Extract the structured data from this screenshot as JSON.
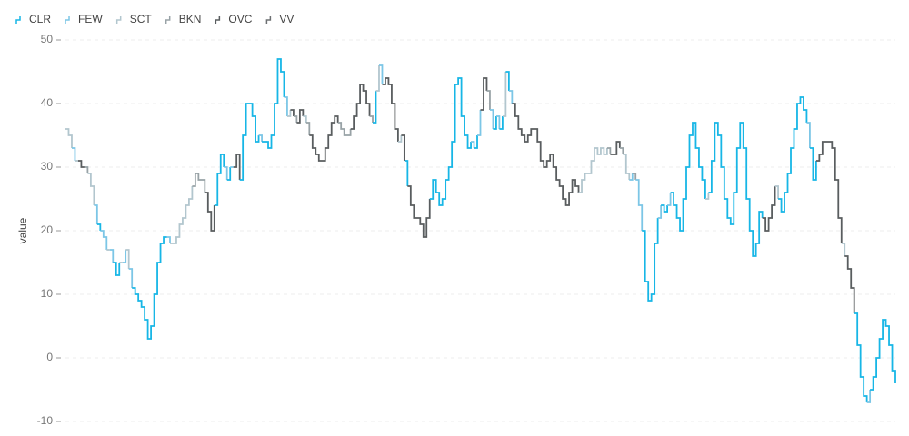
{
  "chart_data": {
    "type": "step",
    "y_label": "value",
    "series": [
      {
        "name": "CLR",
        "color": "#17b6e6"
      },
      {
        "name": "FEW",
        "color": "#7cc6e6"
      },
      {
        "name": "SCT",
        "color": "#b2c6ce"
      },
      {
        "name": "BKN",
        "color": "#98a2a6"
      },
      {
        "name": "OVC",
        "color": "#595d5f"
      },
      {
        "name": "VV",
        "color": "#6d7072"
      }
    ],
    "values": [
      36,
      35,
      33,
      31,
      31,
      30,
      30,
      29,
      27,
      24,
      21,
      20,
      19,
      17,
      17,
      15,
      13,
      15,
      15,
      17,
      14,
      11,
      10,
      9,
      8,
      6,
      3,
      5,
      10,
      15,
      18,
      19,
      19,
      18,
      18,
      19,
      21,
      22,
      24,
      25,
      27,
      29,
      28,
      28,
      26,
      23,
      20,
      24,
      29,
      32,
      30,
      28,
      30,
      30,
      32,
      28,
      35,
      40,
      40,
      38,
      34,
      35,
      34,
      34,
      33,
      35,
      40,
      47,
      45,
      41,
      38,
      39,
      38,
      37,
      39,
      38,
      37,
      35,
      33,
      32,
      31,
      31,
      33,
      35,
      37,
      38,
      37,
      36,
      35,
      35,
      36,
      38,
      40,
      43,
      42,
      40,
      38,
      37,
      42,
      46,
      43,
      44,
      43,
      40,
      36,
      34,
      35,
      31,
      27,
      24,
      22,
      22,
      21,
      19,
      22,
      25,
      28,
      26,
      24,
      25,
      28,
      30,
      34,
      43,
      44,
      38,
      35,
      33,
      34,
      33,
      35,
      39,
      44,
      42,
      39,
      36,
      38,
      36,
      38,
      45,
      42,
      40,
      38,
      36,
      35,
      34,
      35,
      36,
      36,
      34,
      31,
      30,
      31,
      32,
      30,
      28,
      27,
      25,
      24,
      26,
      28,
      27,
      26,
      28,
      29,
      29,
      31,
      33,
      32,
      33,
      32,
      33,
      32,
      32,
      34,
      33,
      32,
      29,
      28,
      29,
      28,
      24,
      20,
      12,
      9,
      10,
      18,
      22,
      24,
      23,
      24,
      26,
      24,
      22,
      20,
      25,
      30,
      35,
      37,
      33,
      30,
      28,
      25,
      26,
      31,
      37,
      35,
      30,
      25,
      22,
      21,
      26,
      33,
      37,
      33,
      25,
      20,
      16,
      18,
      23,
      22,
      20,
      22,
      24,
      27,
      25,
      23,
      26,
      29,
      33,
      36,
      40,
      41,
      39,
      37,
      33,
      28,
      31,
      32,
      34,
      34,
      34,
      33,
      28,
      22,
      18,
      16,
      14,
      11,
      7,
      2,
      -3,
      -6,
      -7,
      -5,
      -3,
      0,
      3,
      6,
      5,
      2,
      -2,
      -4
    ],
    "sky": [
      "SCT",
      "SCT",
      "FEW",
      "SCT",
      "OVC",
      "OVC",
      "BKN",
      "SCT",
      "SCT",
      "FEW",
      "CLR",
      "FEW",
      "FEW",
      "SCT",
      "FEW",
      "CLR",
      "CLR",
      "SCT",
      "FEW",
      "SCT",
      "FEW",
      "CLR",
      "CLR",
      "CLR",
      "CLR",
      "CLR",
      "CLR",
      "CLR",
      "CLR",
      "CLR",
      "CLR",
      "CLR",
      "FEW",
      "SCT",
      "SCT",
      "SCT",
      "SCT",
      "SCT",
      "SCT",
      "SCT",
      "BKN",
      "BKN",
      "BKN",
      "BKN",
      "OVC",
      "OVC",
      "OVC",
      "CLR",
      "CLR",
      "CLR",
      "FEW",
      "CLR",
      "FEW",
      "OVC",
      "OVC",
      "CLR",
      "CLR",
      "CLR",
      "CLR",
      "CLR",
      "CLR",
      "FEW",
      "CLR",
      "CLR",
      "CLR",
      "CLR",
      "CLR",
      "CLR",
      "CLR",
      "FEW",
      "SCT",
      "OVC",
      "BKN",
      "OVC",
      "OVC",
      "SCT",
      "BKN",
      "OVC",
      "OVC",
      "OVC",
      "OVC",
      "OVC",
      "OVC",
      "OVC",
      "OVC",
      "OVC",
      "BKN",
      "BKN",
      "BKN",
      "BKN",
      "OVC",
      "OVC",
      "OVC",
      "OVC",
      "OVC",
      "OVC",
      "BKN",
      "CLR",
      "SCT",
      "FEW",
      "OVC",
      "OVC",
      "OVC",
      "OVC",
      "OVC",
      "SCT",
      "OVC",
      "CLR",
      "OVC",
      "OVC",
      "OVC",
      "OVC",
      "OVC",
      "OVC",
      "OVC",
      "CLR",
      "CLR",
      "CLR",
      "CLR",
      "CLR",
      "CLR",
      "CLR",
      "CLR",
      "CLR",
      "CLR",
      "CLR",
      "CLR",
      "CLR",
      "FEW",
      "CLR",
      "FEW",
      "OVC",
      "OVC",
      "BKN",
      "FEW",
      "CLR",
      "FEW",
      "CLR",
      "SCT",
      "CLR",
      "FEW",
      "OVC",
      "OVC",
      "OVC",
      "OVC",
      "OVC",
      "OVC",
      "OVC",
      "OVC",
      "OVC",
      "OVC",
      "OVC",
      "OVC",
      "OVC",
      "OVC",
      "OVC",
      "OVC",
      "OVC",
      "OVC",
      "OVC",
      "OVC",
      "OVC",
      "SCT",
      "SCT",
      "SCT",
      "SCT",
      "SCT",
      "SCT",
      "SCT",
      "SCT",
      "SCT",
      "BKN",
      "OVC",
      "OVC",
      "OVC",
      "BKN",
      "SCT",
      "SCT",
      "FEW",
      "BKN",
      "FEW",
      "FEW",
      "CLR",
      "CLR",
      "CLR",
      "CLR",
      "CLR",
      "FEW",
      "CLR",
      "CLR",
      "FEW",
      "CLR",
      "CLR",
      "CLR",
      "CLR",
      "CLR",
      "CLR",
      "CLR",
      "CLR",
      "CLR",
      "CLR",
      "CLR",
      "SCT",
      "CLR",
      "CLR",
      "CLR",
      "CLR",
      "CLR",
      "CLR",
      "CLR",
      "CLR",
      "CLR",
      "CLR",
      "CLR",
      "CLR",
      "CLR",
      "CLR",
      "CLR",
      "CLR",
      "CLR",
      "OVC",
      "OVC",
      "OVC",
      "OVC",
      "SCT",
      "CLR",
      "CLR",
      "CLR",
      "CLR",
      "CLR",
      "CLR",
      "CLR",
      "CLR",
      "CLR",
      "FEW",
      "CLR",
      "CLR",
      "OVC",
      "OVC",
      "OVC",
      "OVC",
      "OVC",
      "OVC",
      "OVC",
      "OVC",
      "SCT",
      "OVC",
      "OVC",
      "OVC",
      "CLR",
      "CLR",
      "CLR",
      "CLR",
      "FEW",
      "CLR",
      "CLR",
      "CLR",
      "CLR",
      "CLR",
      "CLR",
      "CLR",
      "CLR"
    ],
    "ylim": [
      -10,
      50
    ],
    "yticks": [
      -10,
      0,
      10,
      20,
      30,
      40,
      50
    ],
    "grid": true
  }
}
